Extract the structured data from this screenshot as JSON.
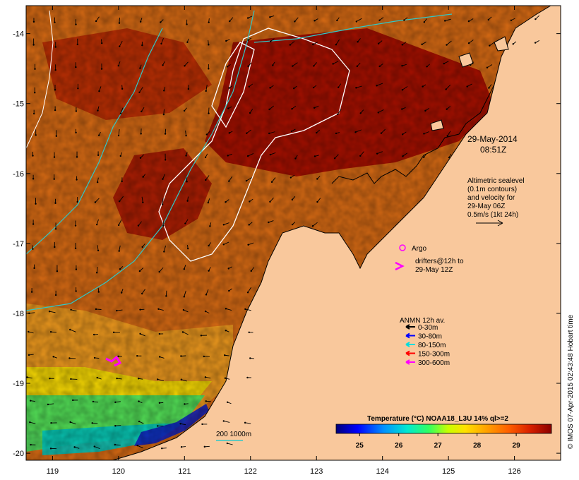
{
  "map": {
    "date": "29-May-2014",
    "time": "08:51Z",
    "lon_ticks": [
      119,
      120,
      121,
      122,
      123,
      124,
      125,
      126
    ],
    "lat_ticks": [
      -14,
      -15,
      -16,
      -17,
      -18,
      -19,
      -20
    ],
    "lon_range": [
      118.6,
      126.7
    ],
    "lat_range": [
      -20.1,
      -13.6
    ]
  },
  "legend": {
    "altimetric": [
      "Altimetric sealevel",
      "(0.1m contours)",
      "and velocity for",
      "29-May 06Z",
      "0.5m/s (1kt 24h)"
    ],
    "argo": "Argo",
    "drifters": [
      "drifters@12h to",
      "29-May 12Z"
    ],
    "anmn_title": "ANMN 12h av.",
    "anmn_items": [
      {
        "label": "0-30m",
        "color": "#000000"
      },
      {
        "label": "30-80m",
        "color": "#0000ff"
      },
      {
        "label": "80-150m",
        "color": "#00dddd"
      },
      {
        "label": "150-300m",
        "color": "#ff0000"
      },
      {
        "label": "300-600m",
        "color": "#ff00ff"
      }
    ],
    "bathy": "200  1000m"
  },
  "colorbar": {
    "title": "Temperature (°C) NOAA18_L3U 14% ql>=2",
    "ticks": [
      "25",
      "26",
      "27",
      "28",
      "29"
    ],
    "colors": [
      "#00007a",
      "#0000ff",
      "#0090ff",
      "#00e8d0",
      "#30ff60",
      "#c8ff00",
      "#ffe000",
      "#ffa000",
      "#ff6000",
      "#d82000",
      "#8b0000"
    ]
  },
  "credit": "© IMOS 07-Apr-2015 02:43:48 Hobart time",
  "colors": {
    "land": "#f9c89c",
    "sst_warm": "#a01000",
    "sst_mid": "#d05010",
    "sst_cool": "#f0a020"
  }
}
